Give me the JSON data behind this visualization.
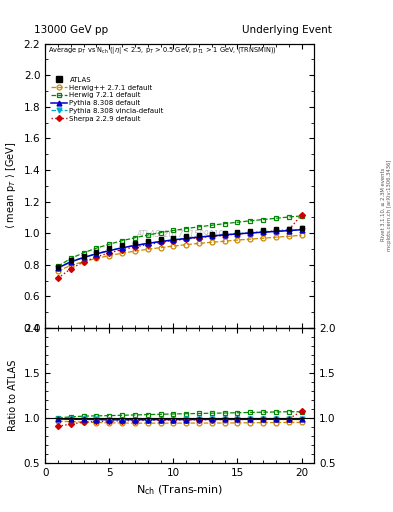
{
  "title_left": "13000 GeV pp",
  "title_right": "Underlying Event",
  "watermark": "ATLAS_2017_I1509919",
  "right_label1": "Rivet 3.1.10, ≥ 2.3M events",
  "right_label2": "mcplots.cern.ch [arXiv:1306.3436]",
  "atlas_x": [
    1,
    2,
    3,
    4,
    5,
    6,
    7,
    8,
    9,
    10,
    11,
    12,
    13,
    14,
    15,
    16,
    17,
    18,
    19,
    20
  ],
  "atlas_y": [
    0.786,
    0.828,
    0.856,
    0.882,
    0.904,
    0.922,
    0.937,
    0.95,
    0.961,
    0.971,
    0.98,
    0.988,
    0.995,
    1.002,
    1.008,
    1.013,
    1.018,
    1.023,
    1.028,
    1.035
  ],
  "atlas_yerr": [
    0.01,
    0.008,
    0.007,
    0.006,
    0.006,
    0.005,
    0.005,
    0.005,
    0.005,
    0.005,
    0.005,
    0.005,
    0.006,
    0.006,
    0.007,
    0.007,
    0.008,
    0.009,
    0.01,
    0.012
  ],
  "herwigpp_y": [
    0.76,
    0.796,
    0.82,
    0.84,
    0.858,
    0.873,
    0.886,
    0.898,
    0.908,
    0.918,
    0.927,
    0.935,
    0.942,
    0.949,
    0.956,
    0.962,
    0.968,
    0.974,
    0.98,
    0.986
  ],
  "herwig_y": [
    0.79,
    0.84,
    0.876,
    0.905,
    0.93,
    0.952,
    0.971,
    0.988,
    1.003,
    1.017,
    1.029,
    1.04,
    1.05,
    1.06,
    1.069,
    1.078,
    1.086,
    1.094,
    1.102,
    1.109
  ],
  "pythia_y": [
    0.78,
    0.818,
    0.846,
    0.869,
    0.889,
    0.907,
    0.922,
    0.935,
    0.947,
    0.957,
    0.966,
    0.975,
    0.982,
    0.989,
    0.995,
    1.001,
    1.006,
    1.011,
    1.016,
    1.022
  ],
  "vincia_y": [
    0.782,
    0.82,
    0.847,
    0.87,
    0.89,
    0.908,
    0.922,
    0.935,
    0.947,
    0.957,
    0.967,
    0.975,
    0.983,
    0.99,
    0.996,
    1.001,
    1.006,
    1.011,
    1.016,
    1.021
  ],
  "sherpa_y": [
    0.715,
    0.775,
    0.818,
    0.85,
    0.875,
    0.896,
    0.913,
    0.928,
    0.941,
    0.953,
    0.963,
    0.972,
    0.98,
    0.988,
    0.995,
    1.002,
    1.008,
    1.014,
    1.021,
    1.115
  ],
  "ylim_main": [
    0.4,
    2.2
  ],
  "ylim_ratio": [
    0.5,
    2.0
  ],
  "xlim": [
    0,
    21
  ],
  "color_atlas": "#000000",
  "color_herwigpp": "#cc8800",
  "color_herwig": "#008800",
  "color_pythia": "#0000cc",
  "color_vincia": "#00aacc",
  "color_sherpa": "#cc0000",
  "yticks_main": [
    0.4,
    0.6,
    0.8,
    1.0,
    1.2,
    1.4,
    1.6,
    1.8,
    2.0,
    2.2
  ],
  "yticks_ratio": [
    0.5,
    1.0,
    1.5,
    2.0
  ]
}
